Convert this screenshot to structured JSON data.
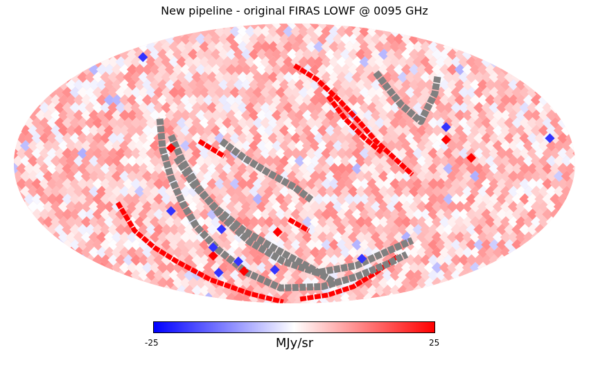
{
  "title": "New pipeline - original FIRAS LOWF @ 0095 GHz",
  "projection": "Mollweide",
  "colorbar": {
    "min_label": "-25",
    "max_label": "25",
    "unit": "MJy/sr",
    "vmin": -25,
    "vmax": 25,
    "colors": [
      "#0000ff",
      "#ffffff",
      "#ff0000"
    ]
  },
  "colors": {
    "missing_pixel": "#808080",
    "background": "#ffffff"
  },
  "chart_data": {
    "type": "heatmap",
    "title": "New pipeline - original FIRAS LOWF @ 0095 GHz",
    "value_range": [
      -25,
      25
    ],
    "unit": "MJy/sr",
    "typical_value": 5,
    "features": {
      "missing_pixel_arcs": [
        [
          [
            -0.48,
            0.32
          ],
          [
            -0.47,
            0.1
          ],
          [
            -0.44,
            -0.1
          ],
          [
            -0.4,
            -0.28
          ],
          [
            -0.35,
            -0.45
          ],
          [
            -0.27,
            -0.62
          ],
          [
            -0.17,
            -0.78
          ],
          [
            -0.05,
            -0.89
          ],
          [
            0.1,
            -0.88
          ],
          [
            0.22,
            -0.81
          ],
          [
            0.33,
            -0.72
          ],
          [
            0.4,
            -0.65
          ]
        ],
        [
          [
            -0.44,
            0.2
          ],
          [
            -0.4,
            0.02
          ],
          [
            -0.34,
            -0.18
          ],
          [
            -0.26,
            -0.38
          ],
          [
            -0.16,
            -0.56
          ],
          [
            -0.04,
            -0.7
          ],
          [
            0.08,
            -0.78
          ],
          [
            0.22,
            -0.73
          ],
          [
            0.34,
            -0.62
          ],
          [
            0.42,
            -0.55
          ]
        ],
        [
          [
            -0.42,
            0.04
          ],
          [
            -0.36,
            -0.15
          ],
          [
            -0.28,
            -0.32
          ],
          [
            -0.18,
            -0.48
          ],
          [
            -0.06,
            -0.62
          ],
          [
            0.06,
            -0.75
          ],
          [
            0.15,
            -0.86
          ]
        ],
        [
          [
            -0.26,
            0.16
          ],
          [
            -0.18,
            0.04
          ],
          [
            -0.09,
            -0.07
          ],
          [
            0.0,
            -0.17
          ],
          [
            0.06,
            -0.26
          ]
        ],
        [
          [
            0.29,
            0.65
          ],
          [
            0.34,
            0.52
          ],
          [
            0.38,
            0.42
          ],
          [
            0.45,
            0.3
          ],
          [
            0.5,
            0.5
          ],
          [
            0.51,
            0.62
          ]
        ]
      ],
      "red_arcs": [
        [
          [
            0.0,
            0.7
          ],
          [
            0.08,
            0.6
          ],
          [
            0.16,
            0.45
          ],
          [
            0.23,
            0.3
          ],
          [
            0.29,
            0.16
          ],
          [
            0.36,
            0.03
          ],
          [
            0.42,
            -0.08
          ]
        ],
        [
          [
            0.12,
            0.48
          ],
          [
            0.18,
            0.32
          ],
          [
            0.25,
            0.18
          ],
          [
            0.31,
            0.08
          ]
        ],
        [
          [
            -0.34,
            0.16
          ],
          [
            -0.25,
            0.05
          ]
        ],
        [
          [
            -0.63,
            -0.28
          ],
          [
            -0.57,
            -0.48
          ],
          [
            -0.5,
            -0.6
          ],
          [
            -0.42,
            -0.7
          ],
          [
            -0.3,
            -0.83
          ],
          [
            -0.16,
            -0.93
          ],
          [
            -0.04,
            -0.99
          ]
        ],
        [
          [
            0.02,
            -0.97
          ],
          [
            0.12,
            -0.94
          ],
          [
            0.21,
            -0.88
          ],
          [
            0.29,
            -0.78
          ],
          [
            0.37,
            -0.66
          ]
        ],
        [
          [
            -0.02,
            -0.4
          ],
          [
            0.05,
            -0.48
          ]
        ]
      ],
      "red_spots": [
        [
          0.63,
          0.04
        ],
        [
          0.54,
          0.17
        ],
        [
          -0.06,
          -0.49
        ],
        [
          -0.29,
          -0.66
        ],
        [
          -0.18,
          -0.77
        ],
        [
          -0.44,
          0.11
        ]
      ],
      "blue_spots": [
        [
          -0.54,
          0.76
        ],
        [
          0.54,
          0.26
        ],
        [
          0.91,
          0.18
        ],
        [
          -0.29,
          -0.6
        ],
        [
          -0.2,
          -0.7
        ],
        [
          -0.27,
          -0.78
        ],
        [
          0.24,
          -0.68
        ],
        [
          -0.07,
          -0.76
        ],
        [
          -0.44,
          -0.34
        ],
        [
          -0.26,
          -0.47
        ]
      ]
    }
  }
}
